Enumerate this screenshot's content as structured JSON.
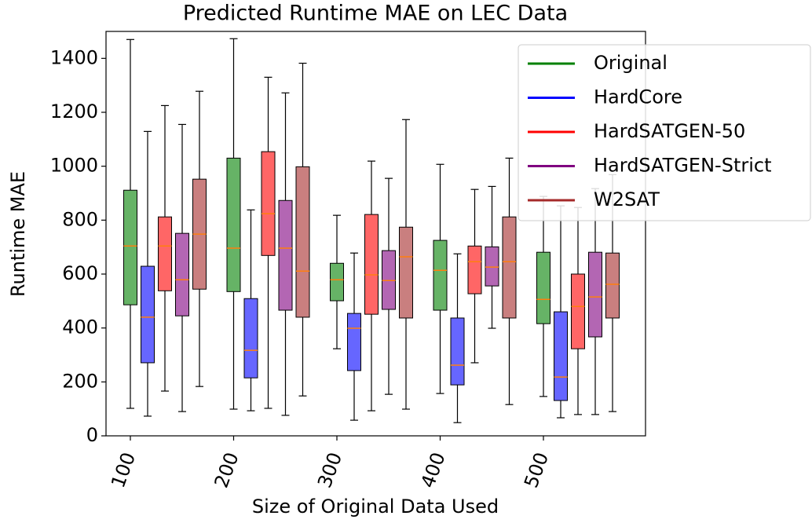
{
  "chart_data": {
    "type": "box",
    "title": "Predicted Runtime MAE on LEC Data",
    "x_label": "Size of Original Data Used",
    "y_label": "Runtime MAE",
    "categories": [
      "100",
      "200",
      "300",
      "400",
      "500"
    ],
    "ylim": [
      0,
      1500
    ],
    "yticks": [
      0,
      200,
      400,
      600,
      800,
      1000,
      1200,
      1400
    ],
    "legend_position": "upper right",
    "median_color": "#ff7f0e",
    "series": [
      {
        "name": "Original",
        "color": "green",
        "values": [
          {
            "whislo": 102,
            "q1": 486,
            "med": 704,
            "q3": 911,
            "whishi": 1470
          },
          {
            "whislo": 99,
            "q1": 535,
            "med": 696,
            "q3": 1030,
            "whishi": 1473
          },
          {
            "whislo": 323,
            "q1": 501,
            "med": 579,
            "q3": 640,
            "whishi": 818
          },
          {
            "whislo": 157,
            "q1": 466,
            "med": 614,
            "q3": 725,
            "whishi": 1007
          },
          {
            "whislo": 146,
            "q1": 416,
            "med": 506,
            "q3": 681,
            "whishi": 888
          }
        ]
      },
      {
        "name": "HardCore",
        "color": "blue",
        "values": [
          {
            "whislo": 73,
            "q1": 271,
            "med": 440,
            "q3": 629,
            "whishi": 1129
          },
          {
            "whislo": 93,
            "q1": 215,
            "med": 317,
            "q3": 509,
            "whishi": 838
          },
          {
            "whislo": 58,
            "q1": 242,
            "med": 399,
            "q3": 454,
            "whishi": 678
          },
          {
            "whislo": 49,
            "q1": 189,
            "med": 262,
            "q3": 437,
            "whishi": 675
          },
          {
            "whislo": 67,
            "q1": 131,
            "med": 218,
            "q3": 460,
            "whishi": 853
          }
        ]
      },
      {
        "name": "HardSATGEN-50",
        "color": "red",
        "values": [
          {
            "whislo": 166,
            "q1": 538,
            "med": 704,
            "q3": 812,
            "whishi": 1225
          },
          {
            "whislo": 102,
            "q1": 669,
            "med": 824,
            "q3": 1054,
            "whishi": 1330
          },
          {
            "whislo": 93,
            "q1": 451,
            "med": 597,
            "q3": 821,
            "whishi": 1019
          },
          {
            "whislo": 271,
            "q1": 527,
            "med": 646,
            "q3": 704,
            "whishi": 914
          },
          {
            "whislo": 79,
            "q1": 323,
            "med": 480,
            "q3": 600,
            "whishi": 847
          }
        ]
      },
      {
        "name": "HardSATGEN-Strict",
        "color": "purple",
        "values": [
          {
            "whislo": 90,
            "q1": 445,
            "med": 579,
            "q3": 751,
            "whishi": 1155
          },
          {
            "whislo": 76,
            "q1": 466,
            "med": 696,
            "q3": 873,
            "whishi": 1272
          },
          {
            "whislo": 154,
            "q1": 469,
            "med": 576,
            "q3": 687,
            "whishi": 955
          },
          {
            "whislo": 399,
            "q1": 556,
            "med": 626,
            "q3": 701,
            "whishi": 925
          },
          {
            "whislo": 79,
            "q1": 367,
            "med": 515,
            "q3": 681,
            "whishi": 917
          }
        ]
      },
      {
        "name": "W2SAT",
        "color": "brown",
        "values": [
          {
            "whislo": 183,
            "q1": 544,
            "med": 748,
            "q3": 952,
            "whishi": 1278
          },
          {
            "whislo": 148,
            "q1": 440,
            "med": 611,
            "q3": 998,
            "whishi": 1382
          },
          {
            "whislo": 99,
            "q1": 437,
            "med": 664,
            "q3": 774,
            "whishi": 1173
          },
          {
            "whislo": 116,
            "q1": 437,
            "med": 646,
            "q3": 812,
            "whishi": 1030
          },
          {
            "whislo": 90,
            "q1": 437,
            "med": 562,
            "q3": 678,
            "whishi": 969
          }
        ]
      }
    ]
  }
}
